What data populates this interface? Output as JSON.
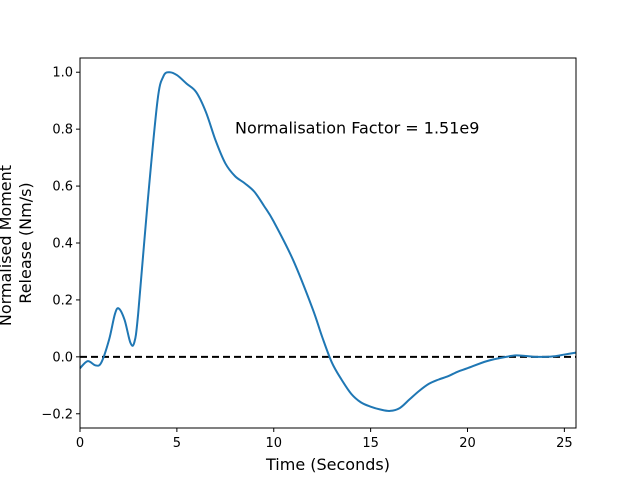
{
  "chart_data": {
    "type": "line",
    "title": "",
    "xlabel": "Time (Seconds)",
    "ylabel_lines": [
      "Normalised Moment",
      "Release (Nm/s)"
    ],
    "xlim": [
      0,
      25.6
    ],
    "ylim": [
      -0.25,
      1.05
    ],
    "x_ticks": [
      0,
      5,
      10,
      15,
      20,
      25
    ],
    "x_tick_labels": [
      "0",
      "5",
      "10",
      "15",
      "20",
      "25"
    ],
    "y_ticks": [
      -0.2,
      0.0,
      0.2,
      0.4,
      0.6,
      0.8,
      1.0
    ],
    "y_tick_labels": [
      "−0.2",
      "0.0",
      "0.2",
      "0.4",
      "0.6",
      "0.8",
      "1.0"
    ],
    "grid": false,
    "annotation": {
      "text": "Normalisation Factor = 1.51e9",
      "x": 8.0,
      "y": 0.805
    },
    "reference_line": {
      "y": 0.0,
      "style": "dashed",
      "color": "#000000"
    },
    "series": [
      {
        "color": "#1f77b4",
        "x": [
          0,
          0.4,
          0.8,
          1.1,
          1.5,
          1.8,
          2.0,
          2.3,
          2.6,
          2.8,
          3.0,
          3.5,
          4.0,
          4.3,
          4.6,
          5.0,
          5.5,
          6.0,
          6.5,
          7.0,
          7.5,
          8.0,
          8.5,
          9.0,
          9.5,
          10.0,
          11.0,
          12.0,
          12.5,
          13.0,
          13.5,
          14.0,
          14.5,
          15.0,
          15.5,
          16.0,
          16.5,
          17.0,
          17.5,
          18.0,
          18.5,
          19.0,
          19.5,
          20.0,
          21.0,
          22.0,
          22.5,
          23.0,
          23.5,
          24.0,
          24.5,
          25.0,
          25.6
        ],
        "y": [
          -0.04,
          -0.015,
          -0.03,
          -0.02,
          0.06,
          0.15,
          0.17,
          0.13,
          0.05,
          0.05,
          0.15,
          0.55,
          0.9,
          0.985,
          1.0,
          0.99,
          0.96,
          0.93,
          0.86,
          0.76,
          0.68,
          0.635,
          0.61,
          0.58,
          0.53,
          0.475,
          0.34,
          0.17,
          0.07,
          -0.02,
          -0.08,
          -0.13,
          -0.16,
          -0.175,
          -0.185,
          -0.19,
          -0.18,
          -0.15,
          -0.12,
          -0.095,
          -0.08,
          -0.068,
          -0.052,
          -0.04,
          -0.015,
          0.0,
          0.005,
          0.003,
          0.0,
          0.0,
          0.002,
          0.008,
          0.015
        ]
      }
    ]
  }
}
